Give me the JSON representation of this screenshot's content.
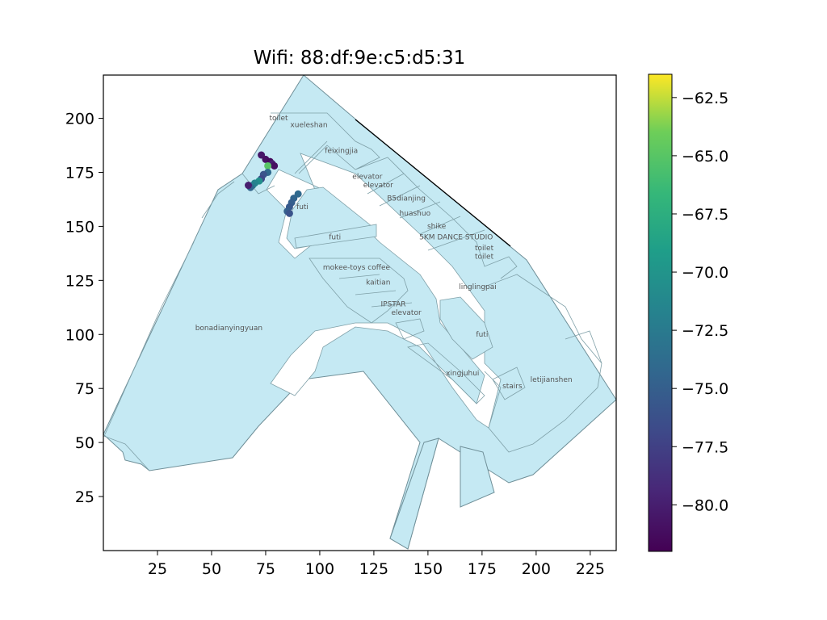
{
  "chart_data": {
    "type": "scatter",
    "title": "Wifi: 88:df:9e:c5:d5:31",
    "xlabel": "",
    "ylabel": "",
    "xlim": [
      0,
      237
    ],
    "ylim": [
      0,
      220
    ],
    "x_ticks": [
      25,
      50,
      75,
      100,
      125,
      150,
      175,
      200,
      225
    ],
    "y_ticks": [
      25,
      50,
      75,
      100,
      125,
      150,
      175,
      200
    ],
    "colorbar": {
      "colormap": "viridis",
      "range": [
        -82,
        -61.5
      ],
      "ticks": [
        "−62.5",
        "−65.0",
        "−67.5",
        "−70.0",
        "−72.5",
        "−75.0",
        "−77.5",
        "−80.0"
      ],
      "tick_values": [
        -62.5,
        -65.0,
        -67.5,
        -70.0,
        -72.5,
        -75.0,
        -77.5,
        -80.0
      ]
    },
    "room_labels": [
      {
        "text": "toilet",
        "x": 81,
        "y": 199
      },
      {
        "text": "xueleshan",
        "x": 95,
        "y": 196
      },
      {
        "text": "feixingjia",
        "x": 110,
        "y": 184
      },
      {
        "text": "elevator",
        "x": 122,
        "y": 172
      },
      {
        "text": "elevator",
        "x": 127,
        "y": 168
      },
      {
        "text": "B5dianjing",
        "x": 140,
        "y": 162
      },
      {
        "text": "futi",
        "x": 92,
        "y": 158
      },
      {
        "text": "huashuo",
        "x": 144,
        "y": 155
      },
      {
        "text": "shike",
        "x": 154,
        "y": 149
      },
      {
        "text": "5KM DANCE STUDIO",
        "x": 163,
        "y": 144
      },
      {
        "text": "futi",
        "x": 107,
        "y": 144
      },
      {
        "text": "toilet",
        "x": 176,
        "y": 139
      },
      {
        "text": "toilet",
        "x": 176,
        "y": 135
      },
      {
        "text": "mokee-toys coffee",
        "x": 117,
        "y": 130
      },
      {
        "text": "kaitian",
        "x": 127,
        "y": 123
      },
      {
        "text": "linglingpai",
        "x": 173,
        "y": 121
      },
      {
        "text": "IPSTAR",
        "x": 134,
        "y": 113
      },
      {
        "text": "elevator",
        "x": 140,
        "y": 109
      },
      {
        "text": "bonadianyingyuan",
        "x": 58,
        "y": 102
      },
      {
        "text": "futi",
        "x": 175,
        "y": 99
      },
      {
        "text": "xingjuhui",
        "x": 166,
        "y": 81
      },
      {
        "text": "letijianshen",
        "x": 207,
        "y": 78
      },
      {
        "text": "stairs",
        "x": 189,
        "y": 75
      }
    ],
    "points": [
      {
        "x": 73,
        "y": 183,
        "v": -80.5
      },
      {
        "x": 75,
        "y": 181,
        "v": -81.0
      },
      {
        "x": 77,
        "y": 180,
        "v": -81.5
      },
      {
        "x": 78,
        "y": 179,
        "v": -80.0
      },
      {
        "x": 79,
        "y": 178,
        "v": -81.0
      },
      {
        "x": 76,
        "y": 178,
        "v": -65.0
      },
      {
        "x": 76,
        "y": 175,
        "v": -74.0
      },
      {
        "x": 74,
        "y": 174,
        "v": -76.0
      },
      {
        "x": 73,
        "y": 172,
        "v": -77.0
      },
      {
        "x": 72,
        "y": 171,
        "v": -70.5
      },
      {
        "x": 70,
        "y": 170,
        "v": -71.5
      },
      {
        "x": 69,
        "y": 169,
        "v": -72.0
      },
      {
        "x": 68,
        "y": 168,
        "v": -74.5
      },
      {
        "x": 67,
        "y": 169,
        "v": -80.0
      },
      {
        "x": 90,
        "y": 165,
        "v": -74.0
      },
      {
        "x": 88,
        "y": 163,
        "v": -74.5
      },
      {
        "x": 87,
        "y": 161,
        "v": -75.0
      },
      {
        "x": 86,
        "y": 159,
        "v": -75.5
      },
      {
        "x": 85,
        "y": 157,
        "v": -75.0
      },
      {
        "x": 86,
        "y": 156,
        "v": -76.0
      }
    ]
  }
}
